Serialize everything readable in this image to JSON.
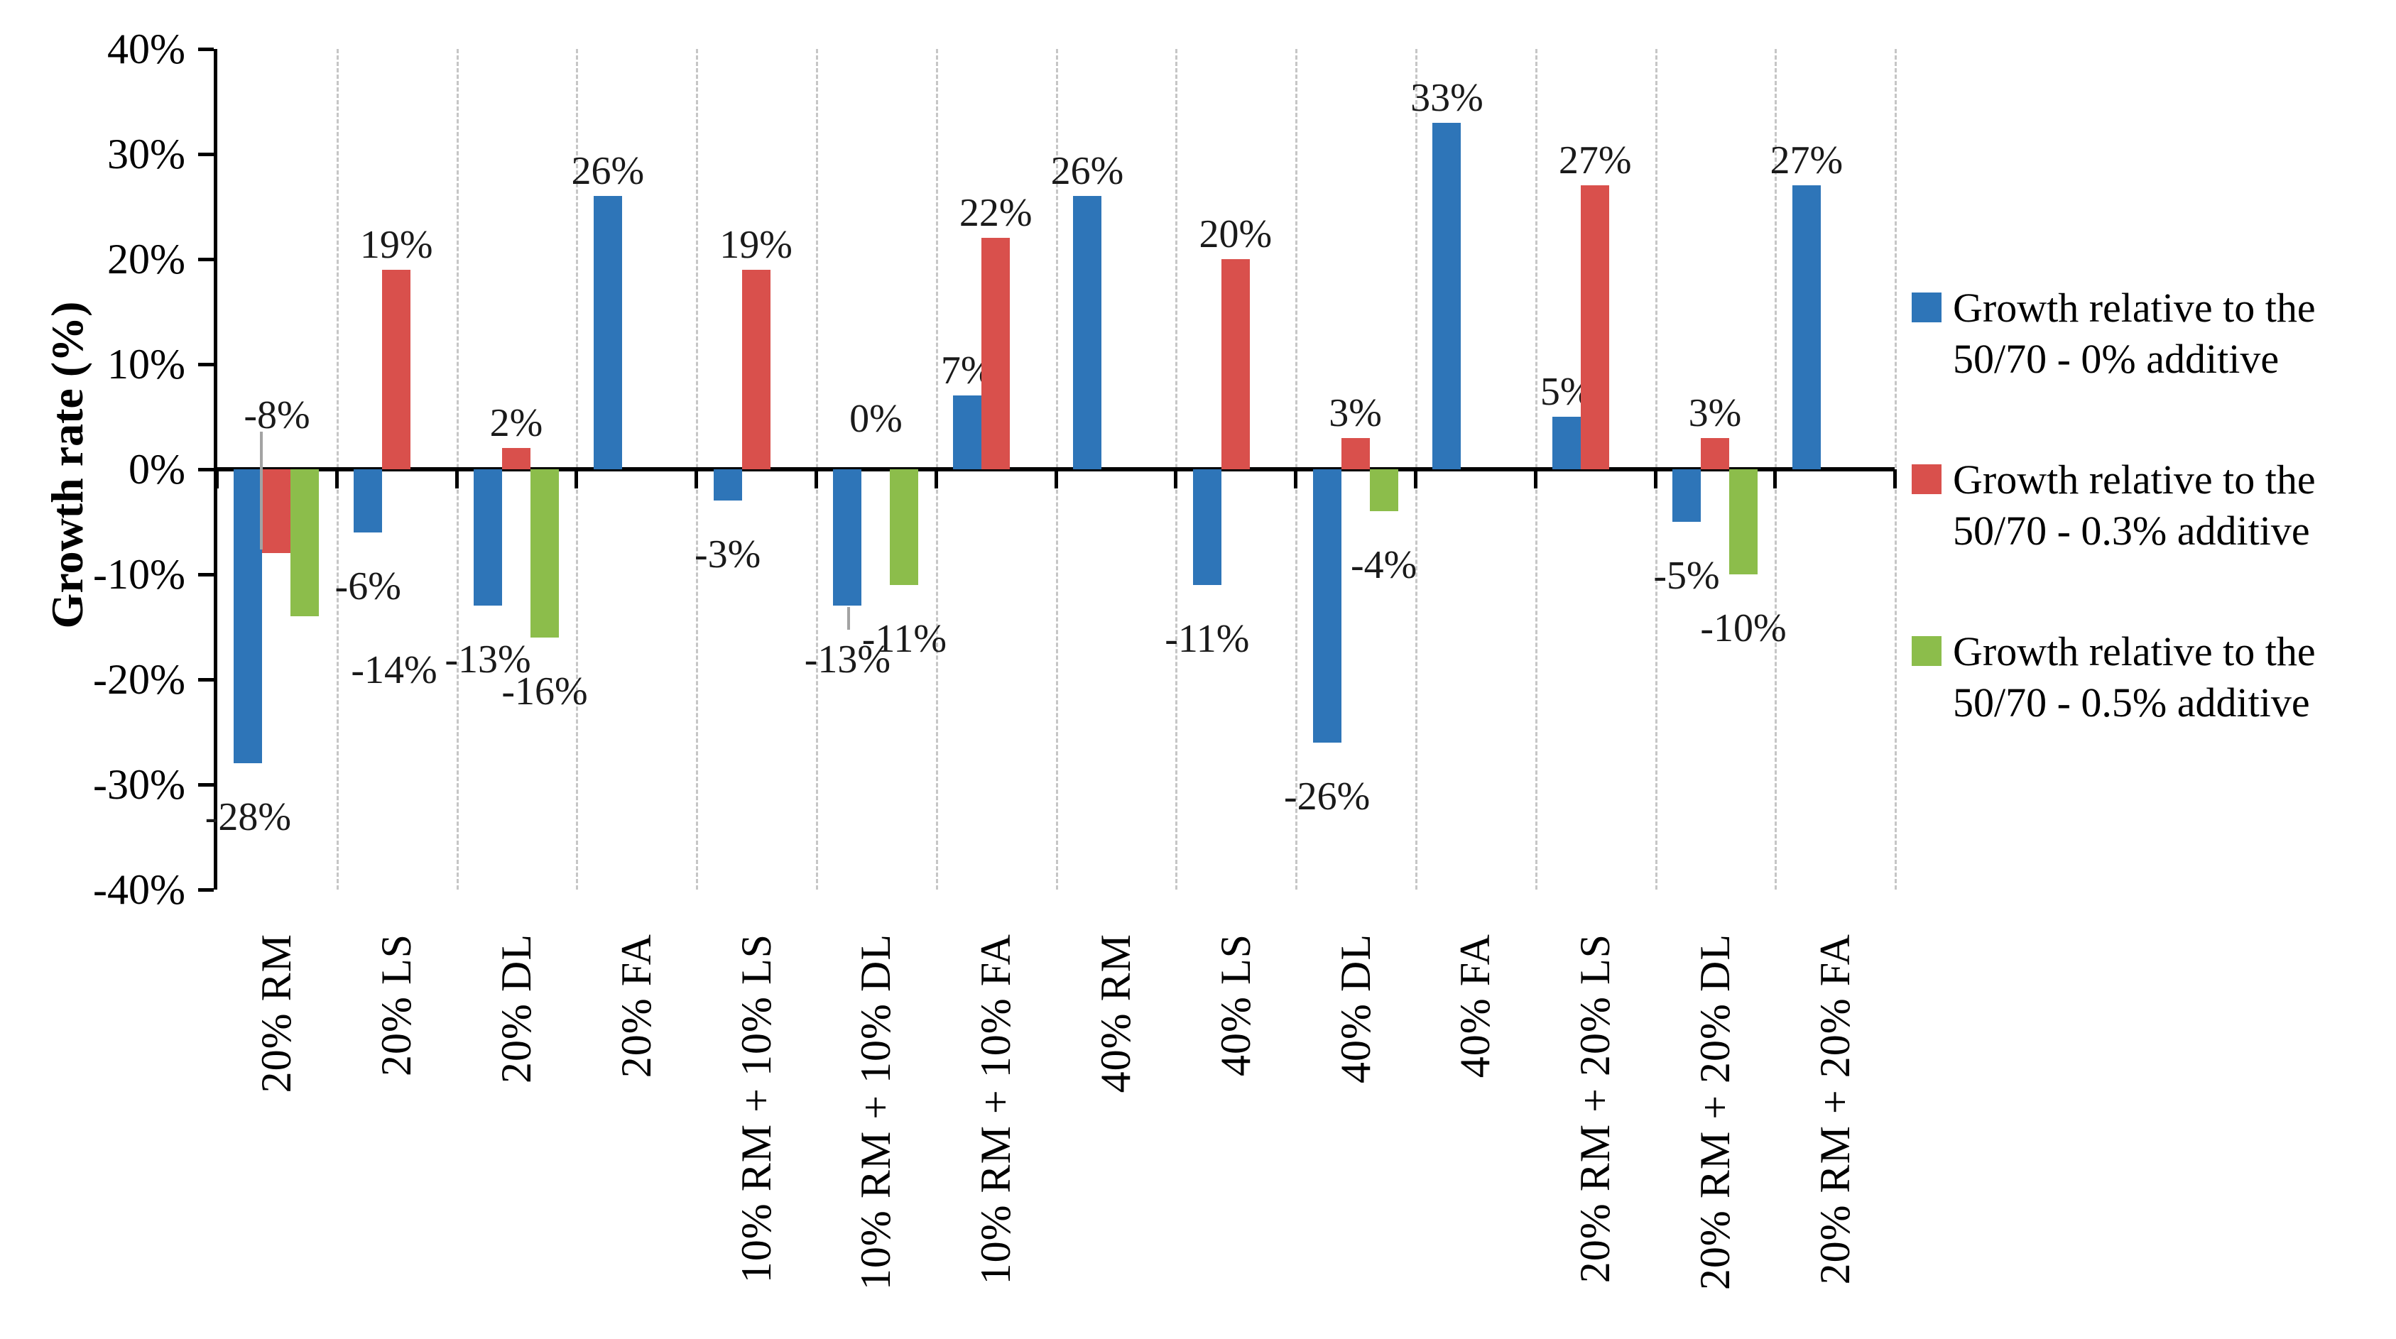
{
  "chart_data": {
    "type": "bar",
    "title": "",
    "ylabel": "Growth rate (%)",
    "xlabel": "",
    "ylim": [
      -40,
      40
    ],
    "ytick_step": 10,
    "ytick_labels": [
      "40%",
      "30%",
      "20%",
      "10%",
      "0%",
      "-10%",
      "-20%",
      "-30%",
      "-40%"
    ],
    "grid": "vertical dashed separators between categories",
    "legend_position": "right",
    "categories": [
      "20% RM",
      "20% LS",
      "20% DL",
      "20% FA",
      "10% RM + 10% LS",
      "10% RM + 10% DL",
      "10% RM + 10% FA",
      "40% RM",
      "40% LS",
      "40% DL",
      "40% FA",
      "20% RM + 20% LS",
      "20% RM + 20% DL",
      "20% RM + 20% FA"
    ],
    "series": [
      {
        "name": "Growth relative to the\n50/70 - 0% additive",
        "color": "#2E75B8",
        "values": [
          -28,
          -6,
          -13,
          26,
          -3,
          -13,
          7,
          26,
          -11,
          -26,
          33,
          5,
          -5,
          27
        ],
        "labels": [
          "-28%",
          "-6%",
          "-13%",
          "26%",
          "-3%",
          "-13%",
          "7%",
          "26%",
          "-11%",
          "-26%",
          "33%",
          "5%",
          "-5%",
          "27%"
        ]
      },
      {
        "name": "Growth relative to the\n50/70 - 0.3% additive",
        "color": "#D9504C",
        "values": [
          -8,
          19,
          2,
          null,
          19,
          0,
          22,
          null,
          20,
          3,
          null,
          27,
          3,
          null
        ],
        "labels": [
          "-8%",
          "19%",
          "2%",
          null,
          "19%",
          "0%",
          "22%",
          null,
          "20%",
          "3%",
          null,
          "27%",
          "3%",
          null
        ]
      },
      {
        "name": "Growth relative to the\n50/70 - 0.5% additive",
        "color": "#8CBD4B",
        "values": [
          -14,
          null,
          -16,
          null,
          null,
          -11,
          null,
          null,
          null,
          -4,
          null,
          null,
          -10,
          null
        ],
        "labels": [
          "-14%",
          null,
          "-16%",
          null,
          null,
          "-11%",
          null,
          null,
          null,
          "-4%",
          null,
          null,
          "-10%",
          null
        ]
      }
    ]
  },
  "colors": {
    "axis": "#000000",
    "gridline": "#c6c6c6",
    "data_label_text": "#1a1a1a",
    "leader_line": "#a3a3a3",
    "background": "#ffffff"
  }
}
